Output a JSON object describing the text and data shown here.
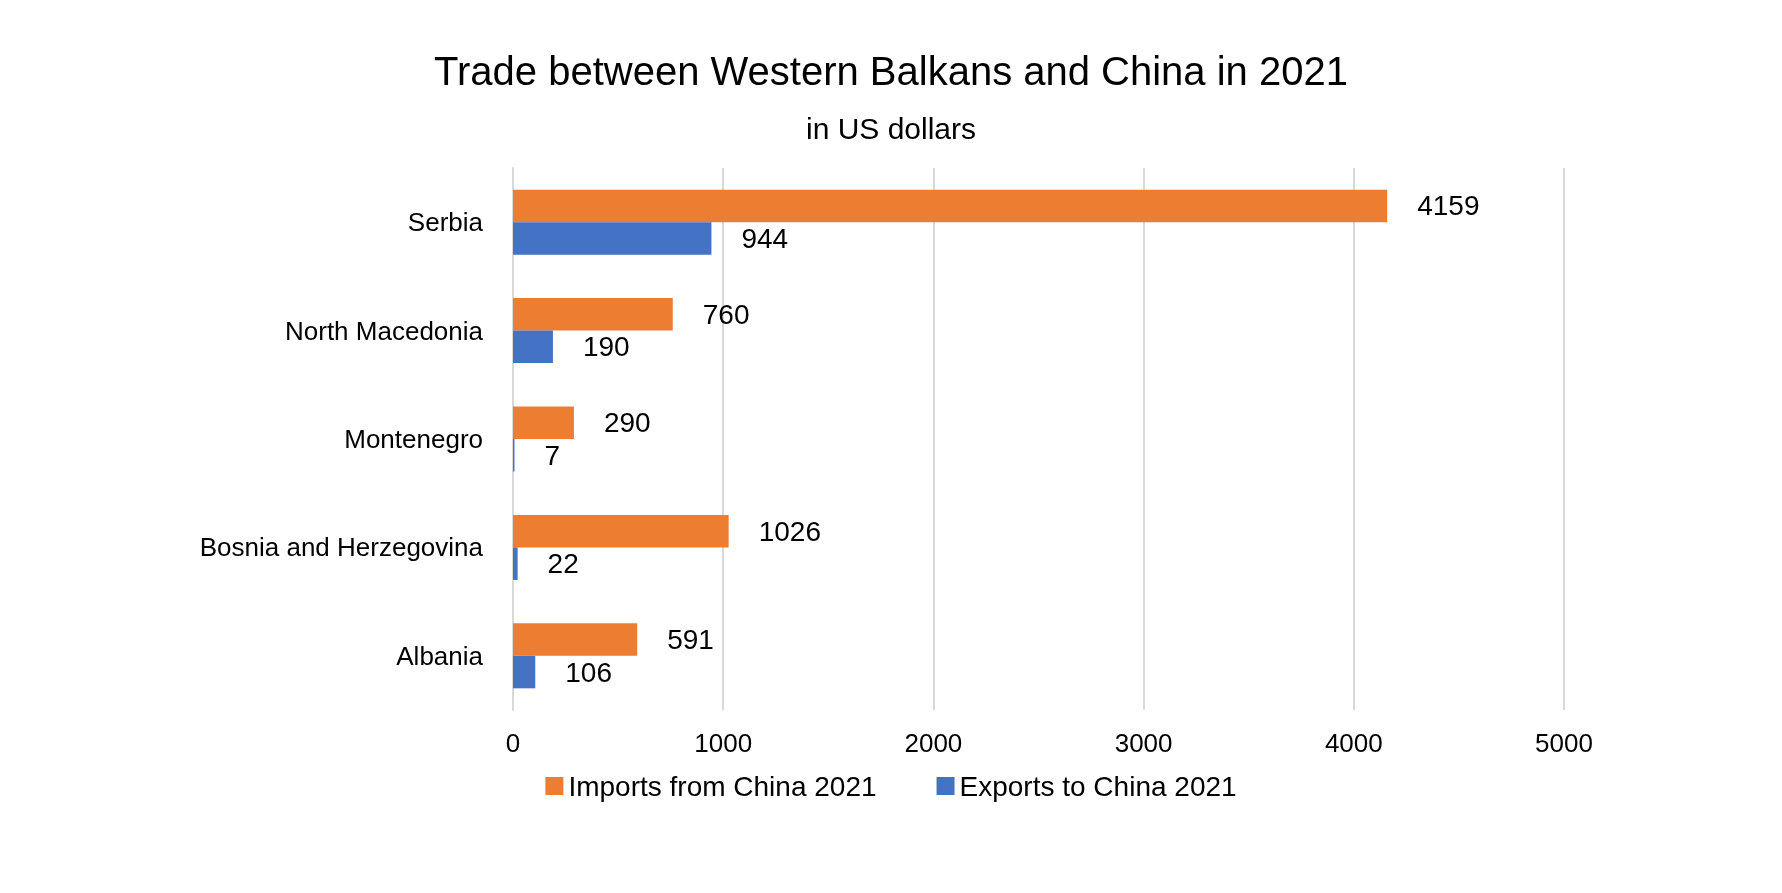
{
  "chart_data": {
    "type": "bar",
    "title": "Trade between Western Balkans and China in 2021",
    "subtitle": "in US dollars",
    "orientation": "horizontal",
    "categories": [
      "Serbia",
      "North Macedonia",
      "Montenegro",
      "Bosnia and Herzegovina",
      "Albania"
    ],
    "series": [
      {
        "name": "Imports from China 2021",
        "color": "#ed7d31",
        "values": [
          4159,
          760,
          290,
          1026,
          591
        ]
      },
      {
        "name": "Exports to China 2021",
        "color": "#4472c4",
        "values": [
          944,
          190,
          7,
          22,
          106
        ]
      }
    ],
    "xlim": [
      0,
      5000
    ],
    "xticks": [
      0,
      1000,
      2000,
      3000,
      4000,
      5000
    ],
    "grid": "x",
    "legend": "bottom",
    "data_labels": true
  }
}
